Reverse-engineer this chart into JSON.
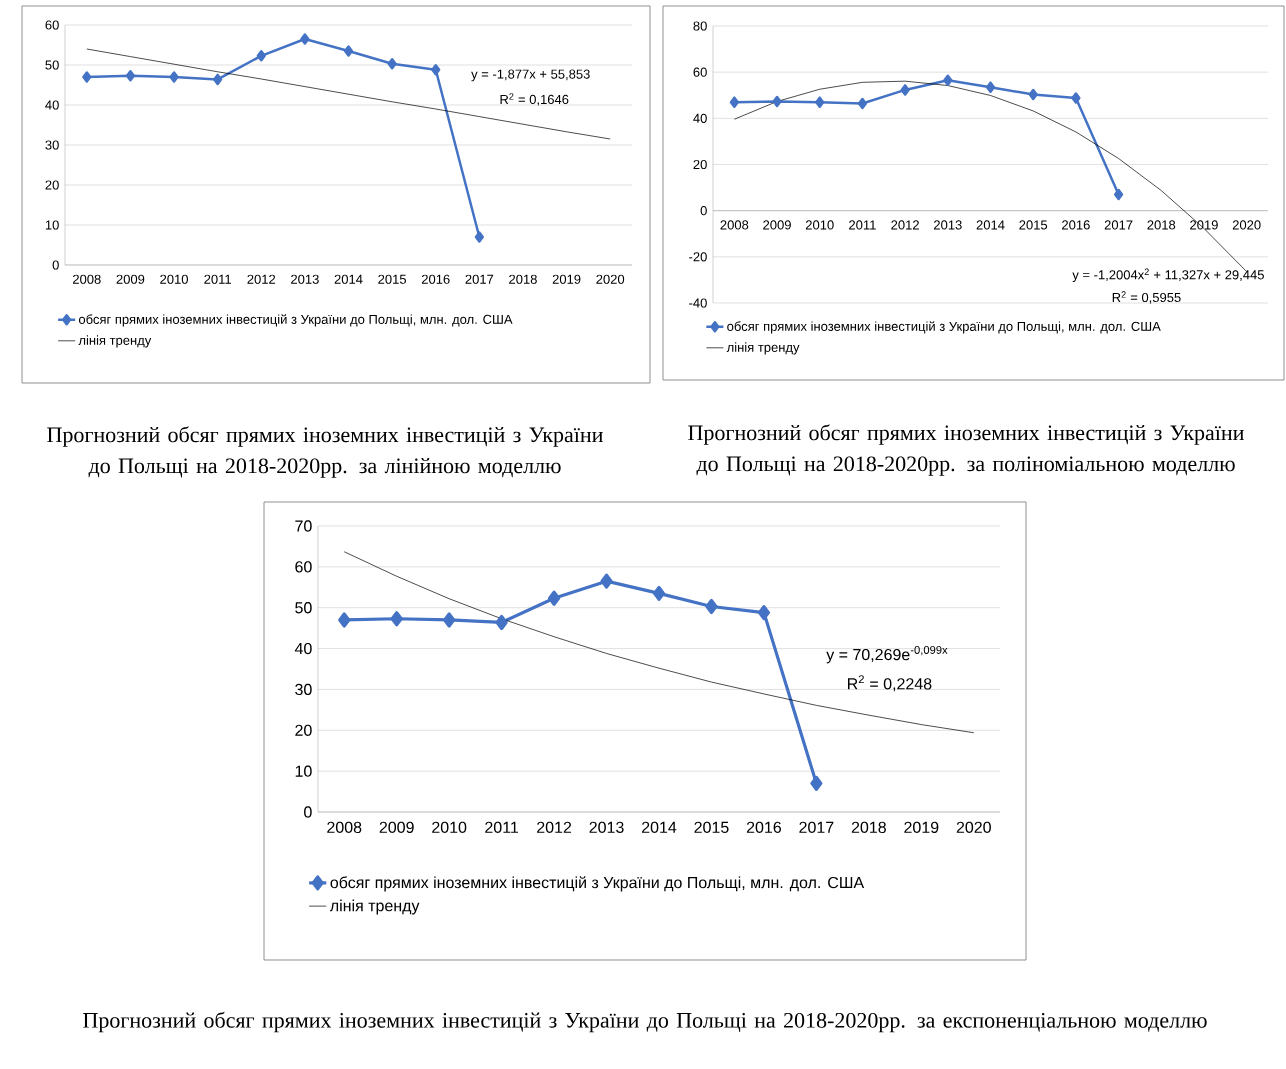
{
  "chart_data": [
    {
      "type": "line",
      "title": "Прогнозний обсяг прямих іноземних інвестицій з України до Польщі на 2018-2020рр. за лінійною моделлю",
      "categories": [
        "2008",
        "2009",
        "2010",
        "2011",
        "2012",
        "2013",
        "2014",
        "2015",
        "2016",
        "2017",
        "2018",
        "2019",
        "2020"
      ],
      "series": [
        {
          "name": "обсяг прямих іноземних інвестицій з України до Польщі, млн. дол. США",
          "color": "#4472c4",
          "marker": "diamond",
          "values": [
            47.0,
            47.3,
            47.0,
            46.4,
            52.3,
            56.5,
            53.5,
            50.3,
            48.8,
            7.0,
            null,
            null,
            null
          ]
        },
        {
          "name": "лінія тренду",
          "color": "#000000",
          "marker": "none",
          "values": [
            54.0,
            52.1,
            50.2,
            48.3,
            46.5,
            44.6,
            42.7,
            40.8,
            39.0,
            37.1,
            35.2,
            33.3,
            31.5
          ]
        }
      ],
      "ylim": [
        0,
        60
      ],
      "yticks": [
        0,
        10,
        20,
        30,
        40,
        50,
        60
      ],
      "grid": "y",
      "legend": "bottom",
      "annotations": [
        "y = -1,877x + 55,853",
        "R$^{2}$ = 0,1646"
      ]
    },
    {
      "type": "line",
      "title": "Прогнозний обсяг прямих іноземних інвестицій з України до Польщі на 2018-2020рр. за поліноміальною моделлю",
      "categories": [
        "2008",
        "2009",
        "2010",
        "2011",
        "2012",
        "2013",
        "2014",
        "2015",
        "2016",
        "2017",
        "2018",
        "2019",
        "2020"
      ],
      "series": [
        {
          "name": "обсяг прямих іноземних інвестицій з України до Польщі, млн. дол. США",
          "color": "#4472c4",
          "marker": "diamond",
          "values": [
            47.0,
            47.3,
            47.0,
            46.4,
            52.3,
            56.5,
            53.5,
            50.3,
            48.8,
            7.0,
            null,
            null,
            null
          ]
        },
        {
          "name": "лінія тренду",
          "color": "#000000",
          "marker": "none",
          "values": [
            39.6,
            47.3,
            52.6,
            55.6,
            56.1,
            54.2,
            49.9,
            43.2,
            34.1,
            22.6,
            8.7,
            -7.7,
            -26.4
          ]
        }
      ],
      "ylim": [
        -40,
        80
      ],
      "yticks": [
        -40,
        -20,
        0,
        20,
        40,
        60,
        80
      ],
      "grid": "y",
      "legend": "bottom",
      "annotations": [
        "y = -1,2004x$^{2}$ + 11,327x + 29,445",
        "R$^{2}$ = 0,5955"
      ]
    },
    {
      "type": "line",
      "title": "Прогнозний обсяг прямих іноземних інвестицій з України до Польщі на 2018-2020рр. за експоненціальною моделлю",
      "categories": [
        "2008",
        "2009",
        "2010",
        "2011",
        "2012",
        "2013",
        "2014",
        "2015",
        "2016",
        "2017",
        "2018",
        "2019",
        "2020"
      ],
      "series": [
        {
          "name": "обсяг прямих іноземних інвестицій з України до Польщі, млн. дол. США",
          "color": "#4472c4",
          "marker": "diamond",
          "values": [
            47.0,
            47.3,
            47.0,
            46.4,
            52.3,
            56.5,
            53.5,
            50.3,
            48.8,
            7.0,
            null,
            null,
            null
          ]
        },
        {
          "name": "лінія тренду",
          "color": "#000000",
          "marker": "none",
          "values": [
            63.7,
            57.7,
            52.2,
            47.3,
            42.9,
            38.8,
            35.2,
            31.8,
            28.9,
            26.1,
            23.7,
            21.4,
            19.4
          ]
        }
      ],
      "ylim": [
        0,
        70
      ],
      "yticks": [
        0,
        10,
        20,
        30,
        40,
        50,
        60,
        70
      ],
      "grid": "y",
      "legend": "bottom",
      "annotations": [
        "y = 70,269e$^{-0,099x}$",
        "R$^{2}$ = 0,2248"
      ]
    }
  ]
}
